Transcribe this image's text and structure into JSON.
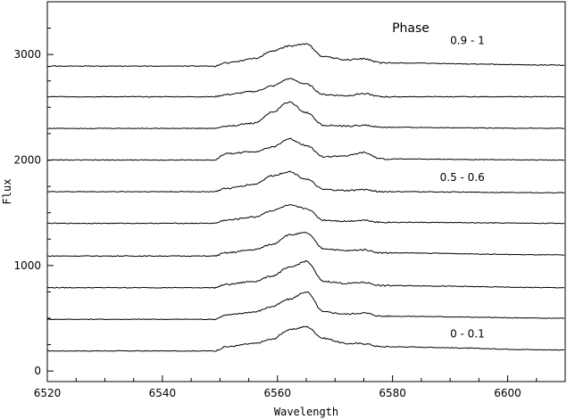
{
  "chart_data": {
    "type": "line",
    "xlabel": "Wavelength",
    "ylabel": "Flux",
    "xlim": [
      6520,
      6610
    ],
    "ylim": [
      -100,
      3500
    ],
    "x_ticks": [
      6520,
      6540,
      6560,
      6580,
      6600
    ],
    "y_ticks": [
      0,
      1000,
      2000,
      3000
    ],
    "grid": false,
    "title": "Phase",
    "annotations": [
      {
        "text": "0.9 - 1",
        "x": 6596,
        "y": 3100
      },
      {
        "text": "0.5 - 0.6",
        "x": 6596,
        "y": 1800
      },
      {
        "text": "0 - 0.1",
        "x": 6596,
        "y": 320
      }
    ],
    "series": [
      {
        "baseline": 190,
        "wavelength": [
          6520,
          6549,
          6551,
          6556,
          6559,
          6562,
          6565,
          6568,
          6572,
          6575,
          6578,
          6610
        ],
        "flux": [
          190,
          190,
          230,
          260,
          300,
          390,
          420,
          310,
          260,
          260,
          230,
          200
        ]
      },
      {
        "baseline": 490,
        "wavelength": [
          6520,
          6549,
          6551,
          6556,
          6559,
          6562,
          6565,
          6568,
          6572,
          6575,
          6578,
          6610
        ],
        "flux": [
          490,
          490,
          530,
          560,
          610,
          680,
          750,
          560,
          540,
          550,
          520,
          500
        ]
      },
      {
        "baseline": 790,
        "wavelength": [
          6520,
          6549,
          6551,
          6556,
          6559,
          6562,
          6565,
          6568,
          6572,
          6575,
          6578,
          6610
        ],
        "flux": [
          790,
          790,
          820,
          850,
          900,
          980,
          1040,
          850,
          830,
          840,
          810,
          790
        ]
      },
      {
        "baseline": 1090,
        "wavelength": [
          6520,
          6549,
          6551,
          6556,
          6559,
          6562,
          6565,
          6568,
          6572,
          6575,
          6578,
          6610
        ],
        "flux": [
          1090,
          1090,
          1120,
          1150,
          1200,
          1290,
          1310,
          1160,
          1140,
          1150,
          1120,
          1100
        ]
      },
      {
        "baseline": 1400,
        "wavelength": [
          6520,
          6549,
          6551,
          6556,
          6559,
          6562,
          6565,
          6568,
          6572,
          6575,
          6578,
          6610
        ],
        "flux": [
          1400,
          1400,
          1430,
          1460,
          1520,
          1570,
          1540,
          1430,
          1420,
          1430,
          1410,
          1400
        ]
      },
      {
        "baseline": 1700,
        "wavelength": [
          6520,
          6549,
          6551,
          6556,
          6559,
          6562,
          6565,
          6568,
          6572,
          6575,
          6578,
          6610
        ],
        "flux": [
          1700,
          1700,
          1730,
          1770,
          1850,
          1890,
          1820,
          1720,
          1710,
          1720,
          1700,
          1690
        ]
      },
      {
        "baseline": 2000,
        "wavelength": [
          6520,
          6549,
          6551,
          6556,
          6559,
          6562,
          6565,
          6568,
          6572,
          6575,
          6578,
          6610
        ],
        "flux": [
          2000,
          2000,
          2060,
          2080,
          2120,
          2200,
          2140,
          2030,
          2040,
          2070,
          2010,
          2000
        ]
      },
      {
        "baseline": 2300,
        "wavelength": [
          6520,
          6549,
          6551,
          6556,
          6559,
          6562,
          6565,
          6568,
          6572,
          6575,
          6578,
          6610
        ],
        "flux": [
          2300,
          2300,
          2320,
          2350,
          2450,
          2550,
          2450,
          2330,
          2320,
          2330,
          2310,
          2300
        ]
      },
      {
        "baseline": 2600,
        "wavelength": [
          6520,
          6549,
          6551,
          6556,
          6559,
          6562,
          6565,
          6568,
          6572,
          6575,
          6578,
          6610
        ],
        "flux": [
          2600,
          2600,
          2620,
          2650,
          2700,
          2770,
          2720,
          2620,
          2610,
          2630,
          2600,
          2600
        ]
      },
      {
        "baseline": 2900,
        "wavelength": [
          6520,
          6549,
          6551,
          6556,
          6559,
          6562,
          6565,
          6568,
          6572,
          6575,
          6578,
          6610
        ],
        "flux": [
          2890,
          2890,
          2920,
          2960,
          3030,
          3080,
          3100,
          2980,
          2950,
          2960,
          2920,
          2900
        ]
      }
    ]
  }
}
